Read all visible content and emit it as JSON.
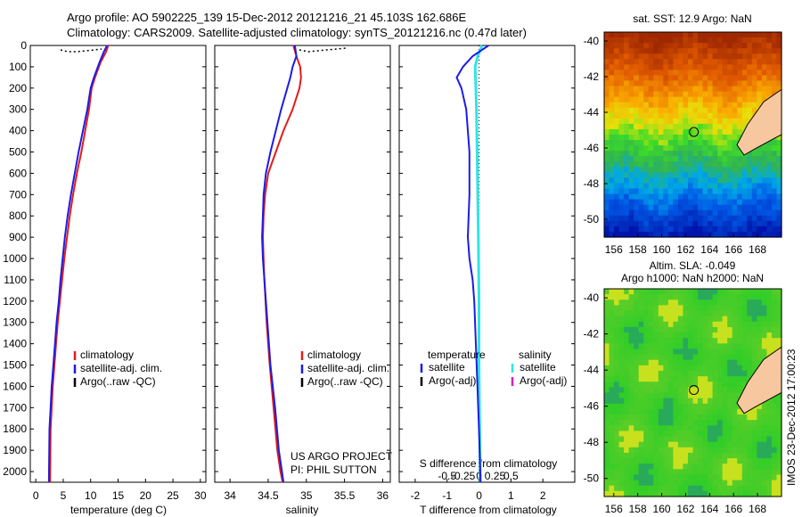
{
  "header": {
    "line1": "Argo profile: AO 5902225_139 15-Dec-2012 20121216_21 45.103S 162.686E",
    "line2": "Climatology: CARS2009. Satellite-adjusted climatology: synTS_20121216.nc (0.47d later)"
  },
  "project": {
    "line1": "US ARGO PROJECT",
    "line2": "PI: PHIL SUTTON"
  },
  "watermark": "IMOS 23-Dec-2012 17:00:23",
  "colors": {
    "climatology": "#e21b1b",
    "satellite": "#1c1ce6",
    "argo": "#000000",
    "satellite_s": "#2ee6e6",
    "argo_s": "#d21ed2",
    "land": "#f7c8a0"
  },
  "chart_data": [
    {
      "type": "line",
      "xlabel": "temperature (deg C)",
      "xlim": [
        -1,
        31
      ],
      "xticks": [
        "0",
        "5",
        "10",
        "15",
        "20",
        "25",
        "30"
      ],
      "ylim": [
        0,
        2050
      ],
      "yticks": [
        "0",
        "100",
        "200",
        "300",
        "400",
        "500",
        "600",
        "700",
        "800",
        "900",
        "1000",
        "1100",
        "1200",
        "1300",
        "1400",
        "1500",
        "1600",
        "1700",
        "1800",
        "1900",
        "2000"
      ],
      "legend": [
        "climatology",
        "satellite-adj. clim.",
        "Argo(..raw -QC)"
      ],
      "series": [
        {
          "name": "climatology",
          "x": [
            13.2,
            12.8,
            11.8,
            10.8,
            10.2,
            9.7,
            9.0,
            8.3,
            7.5,
            6.8,
            6.2,
            5.7,
            5.2,
            4.8,
            4.4,
            4.0,
            3.7,
            3.4,
            3.1,
            2.9,
            2.7,
            2.6
          ],
          "y": [
            0,
            30,
            80,
            150,
            200,
            300,
            400,
            500,
            600,
            700,
            800,
            900,
            1000,
            1100,
            1200,
            1300,
            1400,
            1500,
            1600,
            1700,
            1800,
            2050
          ]
        },
        {
          "name": "satellite-adj. clim.",
          "x": [
            13.0,
            12.4,
            11.6,
            10.6,
            10.0,
            9.4,
            8.6,
            7.8,
            7.1,
            6.4,
            5.8,
            5.3,
            4.9,
            4.5,
            4.2,
            3.8,
            3.5,
            3.2,
            2.9,
            2.7,
            2.5,
            2.4
          ],
          "y": [
            0,
            30,
            80,
            150,
            200,
            300,
            400,
            500,
            600,
            700,
            800,
            900,
            1000,
            1100,
            1200,
            1300,
            1400,
            1500,
            1600,
            1700,
            1800,
            2050
          ]
        }
      ]
    },
    {
      "type": "line",
      "xlabel": "salinity",
      "xlim": [
        33.8,
        36.1
      ],
      "xticks": [
        "34",
        "34.5",
        "35",
        "35.5",
        "36"
      ],
      "ylim": [
        0,
        2050
      ],
      "legend": [
        "climatology",
        "satellite-adj. clim.",
        "Argo(..raw -QC)"
      ],
      "series": [
        {
          "name": "climatology",
          "x": [
            34.83,
            34.87,
            34.92,
            34.93,
            34.91,
            34.82,
            34.7,
            34.6,
            34.5,
            34.46,
            34.44,
            34.43,
            34.44,
            34.45,
            34.48,
            34.52,
            34.57,
            34.62,
            34.66,
            34.69
          ],
          "y": [
            0,
            50,
            100,
            150,
            200,
            300,
            400,
            500,
            600,
            700,
            800,
            900,
            1000,
            1100,
            1300,
            1500,
            1700,
            1900,
            2000,
            2050
          ]
        },
        {
          "name": "satellite-adj. clim.",
          "x": [
            34.85,
            34.87,
            34.82,
            34.79,
            34.75,
            34.67,
            34.6,
            34.53,
            34.47,
            34.44,
            34.43,
            34.42,
            34.43,
            34.45,
            34.49,
            34.53,
            34.59,
            34.64,
            34.68,
            34.7
          ],
          "y": [
            0,
            50,
            100,
            150,
            200,
            300,
            400,
            500,
            600,
            700,
            800,
            900,
            1000,
            1100,
            1300,
            1500,
            1700,
            1900,
            2000,
            2050
          ]
        }
      ]
    },
    {
      "type": "line",
      "xlabel": "T difference from climatology",
      "xlabel2": "S difference from climatology",
      "xlim": [
        -2.5,
        3
      ],
      "xticks": [
        "-2",
        "-1",
        "0",
        "1",
        "2"
      ],
      "xticks_s": [
        "-0.5",
        "-0.25",
        "0",
        "0.25",
        "0.5"
      ],
      "ylim": [
        0,
        2050
      ],
      "legend_titles": [
        "temperature",
        "salinity"
      ],
      "legend": [
        "satellite",
        "Argo(-adj)",
        "satellite",
        "Argo(-adj)"
      ],
      "series": [
        {
          "name": "temperature satellite",
          "x": [
            0.3,
            -0.2,
            -0.5,
            -0.7,
            -0.55,
            -0.4,
            -0.3,
            -0.3,
            -0.35,
            -0.3,
            -0.2,
            -0.15,
            -0.1,
            -0.05,
            0.0,
            0.05
          ],
          "y": [
            0,
            50,
            100,
            150,
            200,
            300,
            500,
            700,
            900,
            1000,
            1100,
            1200,
            1400,
            1600,
            1800,
            2050
          ]
        },
        {
          "name": "salinity satellite",
          "x": [
            0.05,
            -0.02,
            -0.06,
            -0.05,
            -0.04,
            -0.03,
            -0.02,
            -0.01,
            0.0,
            0.0,
            0.01,
            0.02
          ],
          "y": [
            0,
            50,
            100,
            200,
            300,
            500,
            700,
            900,
            1200,
            1500,
            1800,
            2050
          ]
        }
      ]
    },
    {
      "type": "heatmap",
      "title": "sat. SST: 12.9 Argo: NaN",
      "xticks": [
        "156",
        "158",
        "160",
        "162",
        "164",
        "166",
        "168"
      ],
      "yticks": [
        "-40",
        "-42",
        "-44",
        "-46",
        "-48",
        "-50"
      ],
      "argo_position": [
        162.686,
        -45.103
      ]
    },
    {
      "type": "heatmap",
      "title_line1": "Altim. SLA: -0.049",
      "title_line2": "Argo h1000: NaN h2000: NaN",
      "xticks": [
        "156",
        "158",
        "160",
        "162",
        "164",
        "166",
        "168"
      ],
      "yticks": [
        "-40",
        "-42",
        "-44",
        "-46",
        "-48",
        "-50"
      ],
      "argo_position": [
        162.686,
        -45.103
      ]
    }
  ]
}
